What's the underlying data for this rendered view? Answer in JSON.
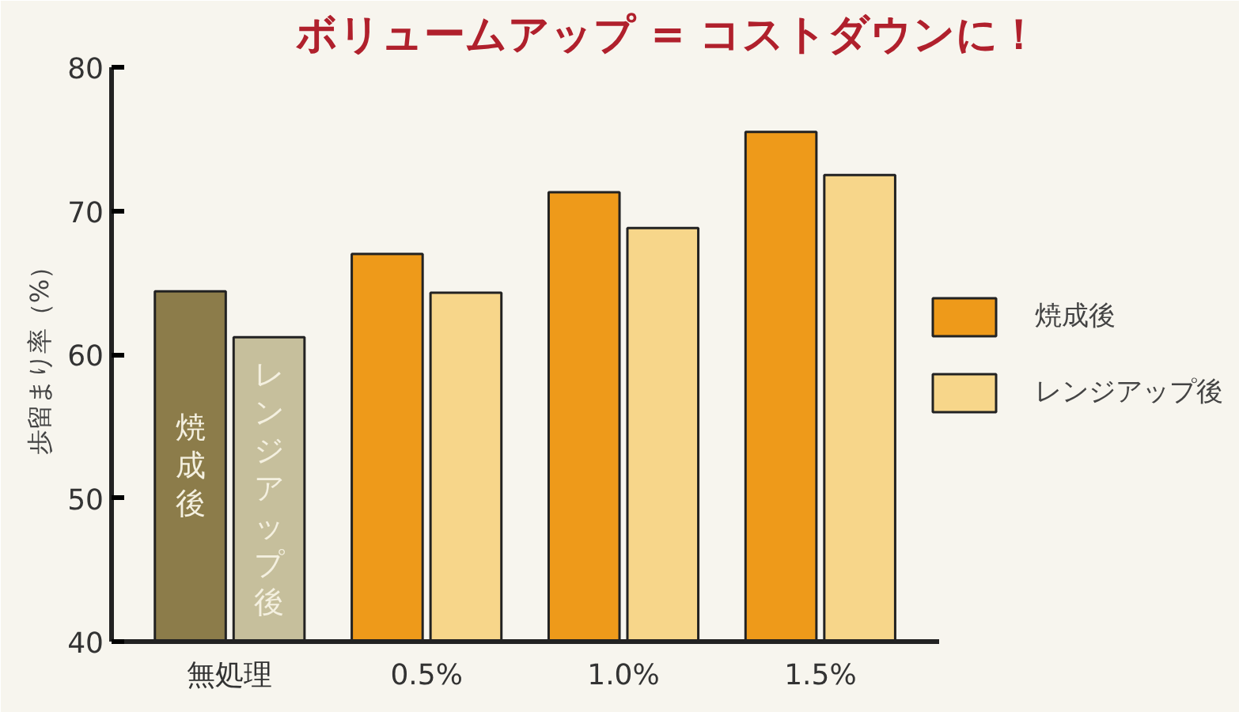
{
  "chart_data": {
    "type": "bar",
    "title": "ボリュームアップ = コストダウンに！",
    "ylabel": "歩留まり率（%）",
    "categories": [
      "無処理",
      "0.5%",
      "1.0%",
      "1.5%"
    ],
    "series": [
      {
        "name": "焼成後",
        "color": "#ee9a1a",
        "colors": [
          "#8c7c4a",
          "#ee9a1a",
          "#ee9a1a",
          "#ee9a1a"
        ],
        "values": [
          64.4,
          67.0,
          71.3,
          75.5
        ]
      },
      {
        "name": "レンジアップ後",
        "color": "#f7d68a",
        "colors": [
          "#c6bf9c",
          "#f7d68a",
          "#f7d68a",
          "#f7d68a"
        ],
        "values": [
          61.2,
          64.3,
          68.8,
          72.5
        ]
      }
    ],
    "annotations": [
      "焼成後",
      "レンジアップ後"
    ],
    "ylim": [
      40,
      80
    ],
    "yticks": [
      40,
      50,
      60,
      70,
      80
    ],
    "grid": false,
    "legend": "right"
  }
}
